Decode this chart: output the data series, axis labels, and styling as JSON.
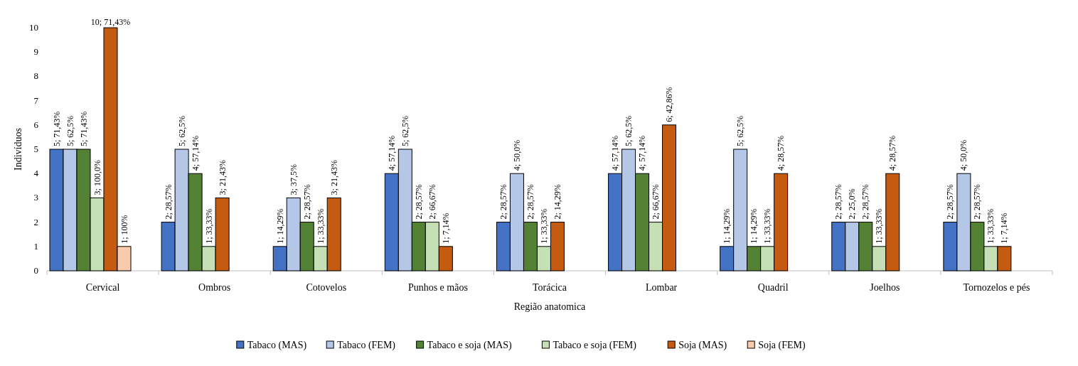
{
  "chart_data": {
    "type": "bar",
    "xlabel": "Região anatomica",
    "ylabel": "Indivíduos",
    "categories": [
      "Cervical",
      "Ombros",
      "Cotovelos",
      "Punhos e mãos",
      "Torácica",
      "Lombar",
      "Quadril",
      "Joelhos",
      "Tornozelos e pés"
    ],
    "ylim": [
      0,
      10
    ],
    "yticks": [
      0,
      1,
      2,
      3,
      4,
      5,
      6,
      7,
      8,
      9,
      10
    ],
    "grid": false,
    "legend": "bottom",
    "series": [
      {
        "name": "Tabaco (MAS)",
        "color": "#4472c4",
        "values": [
          5,
          2,
          1,
          4,
          2,
          4,
          1,
          2,
          2
        ],
        "value_labels": [
          "5; 71,43%",
          "2; 28,57%",
          "1; 14,29%",
          "4; 57,14%",
          "2; 28,57%",
          "4; 57,14%",
          "1; 14,29%",
          "2; 28,57%",
          "2; 28,57%"
        ]
      },
      {
        "name": "Tabaco (FEM)",
        "color": "#b4c7e7",
        "values": [
          5,
          5,
          3,
          5,
          4,
          5,
          5,
          2,
          4
        ],
        "value_labels": [
          "5; 62,5%",
          "5; 62,5%",
          "3; 37,5%",
          "5; 62,5%",
          "4; 50,0%",
          "5; 62,5%",
          "5; 62,5%",
          "2; 25,0%",
          "4; 50,0%"
        ]
      },
      {
        "name": "Tabaco e soja (MAS)",
        "color": "#548235",
        "values": [
          5,
          4,
          2,
          2,
          2,
          4,
          1,
          2,
          2
        ],
        "value_labels": [
          "5; 71,43%",
          "4; 57,14%",
          "2; 28,57%",
          "2; 28,57%",
          "2; 28,57%",
          "4; 57,14%",
          "1; 14,29%",
          "2; 28,57%",
          "2; 28,57%"
        ]
      },
      {
        "name": "Tabaco e soja (FEM)",
        "color": "#c5e0b4",
        "values": [
          3,
          1,
          1,
          2,
          1,
          2,
          1,
          1,
          1
        ],
        "value_labels": [
          "3; 100,0%",
          "1; 33,33%",
          "1; 33,33%",
          "2; 66,67%",
          "1; 33,33%",
          "2; 66,67%",
          "1; 33,33%",
          "1; 33,33%",
          "1; 33,33%"
        ]
      },
      {
        "name": "Soja (MAS)",
        "color": "#c55a11",
        "values": [
          10,
          3,
          3,
          1,
          2,
          6,
          4,
          4,
          1
        ],
        "value_labels": [
          "10; 71,43%",
          "3; 21,43%",
          "3; 21,43%",
          "1; 7,14%",
          "2; 14,29%",
          "6; 42,86%",
          "4; 28,57%",
          "4; 28,57%",
          "1; 7,14%"
        ]
      },
      {
        "name": "Soja (FEM)",
        "color": "#f8cbad",
        "values": [
          1,
          null,
          null,
          null,
          null,
          null,
          null,
          null,
          null
        ],
        "value_labels": [
          "1; 100%",
          null,
          null,
          null,
          null,
          null,
          null,
          null,
          null
        ]
      }
    ]
  }
}
